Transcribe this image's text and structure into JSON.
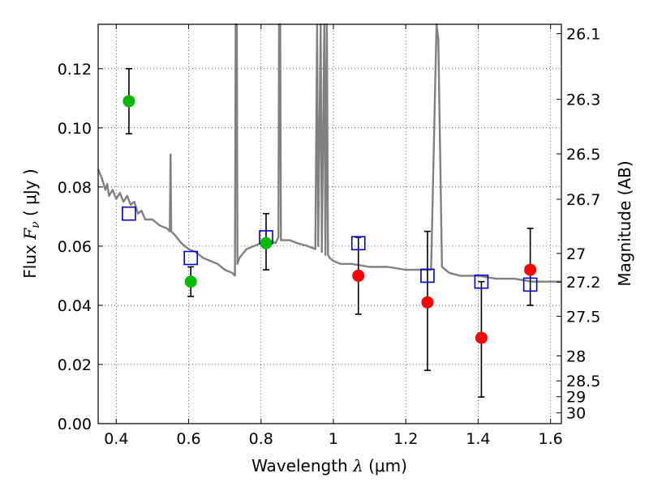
{
  "chart_data": {
    "type": "scatter",
    "xlabel": {
      "prefix": "Wavelength  ",
      "symbol": "λ",
      "units": " (μm)"
    },
    "ylabel": {
      "prefix": "Flux  ",
      "symbol": "F",
      "subscript": "ν",
      "units": "  ( μJy )"
    },
    "y2label": "Magnitude (AB)",
    "xlim": [
      0.35,
      1.63
    ],
    "ylim": [
      0.0,
      0.135
    ],
    "grid": true,
    "xticks": [
      0.4,
      0.6,
      0.8,
      1.0,
      1.2,
      1.4,
      1.6
    ],
    "xtick_labels": [
      "0.4",
      "0.6",
      "0.8",
      "1",
      "1.2",
      "1.4",
      "1.6"
    ],
    "yticks": [
      0.0,
      0.02,
      0.04,
      0.06,
      0.08,
      0.1,
      0.12
    ],
    "ytick_labels": [
      "0.00",
      "0.02",
      "0.04",
      "0.06",
      "0.08",
      "0.10",
      "0.12"
    ],
    "y2ticks": [
      {
        "label": "26.1",
        "mag": 26.1
      },
      {
        "label": "26.3",
        "mag": 26.3
      },
      {
        "label": "26.5",
        "mag": 26.5
      },
      {
        "label": "26.7",
        "mag": 26.7
      },
      {
        "label": "27",
        "mag": 27.0
      },
      {
        "label": "27.2",
        "mag": 27.2
      },
      {
        "label": "27.5",
        "mag": 27.5
      },
      {
        "label": "28",
        "mag": 28.0
      },
      {
        "label": "28.5",
        "mag": 28.5
      },
      {
        "label": "29",
        "mag": 29.0
      },
      {
        "label": "30",
        "mag": 30.0
      }
    ],
    "colors": {
      "green": "#00bb00",
      "red": "#ff0000",
      "blue": "#0000cc",
      "model": "#808080",
      "errorbar": "#000000"
    },
    "observed_green": [
      {
        "x": 0.435,
        "y": 0.109,
        "yerr_low": 0.098,
        "yerr_high": 0.12
      },
      {
        "x": 0.606,
        "y": 0.048,
        "yerr_low": 0.043,
        "yerr_high": 0.053
      },
      {
        "x": 0.814,
        "y": 0.061,
        "yerr_low": 0.052,
        "yerr_high": 0.071
      }
    ],
    "observed_red": [
      {
        "x": 1.069,
        "y": 0.05,
        "yerr_low": 0.037,
        "yerr_high": 0.063
      },
      {
        "x": 1.26,
        "y": 0.041,
        "yerr_low": 0.018,
        "yerr_high": 0.065
      },
      {
        "x": 1.409,
        "y": 0.029,
        "yerr_low": 0.009,
        "yerr_high": 0.048
      },
      {
        "x": 1.544,
        "y": 0.052,
        "yerr_low": 0.04,
        "yerr_high": 0.066
      }
    ],
    "model_photometry": [
      {
        "x": 0.435,
        "y": 0.071
      },
      {
        "x": 0.606,
        "y": 0.056
      },
      {
        "x": 0.814,
        "y": 0.063
      },
      {
        "x": 1.069,
        "y": 0.061
      },
      {
        "x": 1.26,
        "y": 0.05
      },
      {
        "x": 1.409,
        "y": 0.048
      },
      {
        "x": 1.544,
        "y": 0.047
      }
    ],
    "model_sed": [
      [
        0.35,
        0.086
      ],
      [
        0.36,
        0.083
      ],
      [
        0.37,
        0.079
      ],
      [
        0.375,
        0.081
      ],
      [
        0.38,
        0.077
      ],
      [
        0.39,
        0.079
      ],
      [
        0.4,
        0.076
      ],
      [
        0.41,
        0.078
      ],
      [
        0.42,
        0.075
      ],
      [
        0.43,
        0.077
      ],
      [
        0.44,
        0.074
      ],
      [
        0.45,
        0.075
      ],
      [
        0.46,
        0.071
      ],
      [
        0.47,
        0.072
      ],
      [
        0.48,
        0.069
      ],
      [
        0.5,
        0.069
      ],
      [
        0.52,
        0.067
      ],
      [
        0.54,
        0.066
      ],
      [
        0.548,
        0.065
      ],
      [
        0.55,
        0.091
      ],
      [
        0.552,
        0.065
      ],
      [
        0.56,
        0.064
      ],
      [
        0.58,
        0.061
      ],
      [
        0.6,
        0.059
      ],
      [
        0.62,
        0.058
      ],
      [
        0.64,
        0.056
      ],
      [
        0.66,
        0.055
      ],
      [
        0.68,
        0.054
      ],
      [
        0.7,
        0.052
      ],
      [
        0.72,
        0.051
      ],
      [
        0.728,
        0.05
      ],
      [
        0.73,
        0.135
      ],
      [
        0.733,
        0.135
      ],
      [
        0.735,
        0.054
      ],
      [
        0.74,
        0.056
      ],
      [
        0.76,
        0.059
      ],
      [
        0.78,
        0.06
      ],
      [
        0.8,
        0.061
      ],
      [
        0.82,
        0.062
      ],
      [
        0.84,
        0.061
      ],
      [
        0.848,
        0.063
      ],
      [
        0.85,
        0.135
      ],
      [
        0.853,
        0.135
      ],
      [
        0.855,
        0.062
      ],
      [
        0.88,
        0.062
      ],
      [
        0.9,
        0.061
      ],
      [
        0.93,
        0.06
      ],
      [
        0.95,
        0.059
      ],
      [
        0.955,
        0.135
      ],
      [
        0.958,
        0.06
      ],
      [
        0.965,
        0.135
      ],
      [
        0.968,
        0.058
      ],
      [
        0.975,
        0.135
      ],
      [
        0.978,
        0.057
      ],
      [
        0.982,
        0.135
      ],
      [
        0.985,
        0.057
      ],
      [
        0.99,
        0.056
      ],
      [
        1.0,
        0.055
      ],
      [
        1.02,
        0.054
      ],
      [
        1.05,
        0.054
      ],
      [
        1.1,
        0.053
      ],
      [
        1.15,
        0.053
      ],
      [
        1.2,
        0.052
      ],
      [
        1.25,
        0.052
      ],
      [
        1.27,
        0.052
      ],
      [
        1.285,
        0.135
      ],
      [
        1.29,
        0.13
      ],
      [
        1.3,
        0.053
      ],
      [
        1.32,
        0.051
      ],
      [
        1.35,
        0.05
      ],
      [
        1.4,
        0.05
      ],
      [
        1.45,
        0.049
      ],
      [
        1.5,
        0.049
      ],
      [
        1.55,
        0.048
      ],
      [
        1.6,
        0.048
      ],
      [
        1.63,
        0.048
      ]
    ]
  }
}
